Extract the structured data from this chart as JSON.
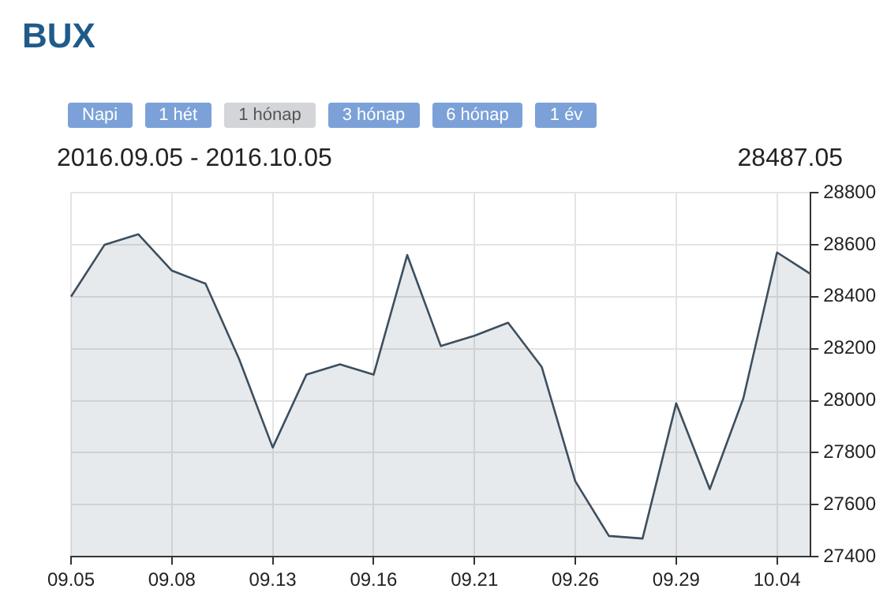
{
  "chart_data": {
    "type": "area",
    "title": "BUX",
    "subtitle": "2016.09.05 - 2016.10.05",
    "annotations": [
      "Napi",
      "1 hét",
      "1 hónap",
      "3 hónap",
      "6 hónap",
      "1 év",
      "28487.05"
    ],
    "categories": [
      "09.05",
      null,
      null,
      "09.08",
      null,
      null,
      "09.13",
      null,
      null,
      "09.16",
      null,
      null,
      "09.21",
      null,
      null,
      "09.26",
      null,
      null,
      "09.29",
      null,
      null,
      "10.04",
      null
    ],
    "series": [
      {
        "color": "#3d4f5f",
        "values": [
          28400,
          28600,
          28640,
          28500,
          28450,
          28160,
          27820,
          28100,
          28140,
          28100,
          28560,
          28210,
          28250,
          28300,
          28130,
          27690,
          27480,
          27470,
          27990,
          27660,
          28010,
          28570,
          28487.05
        ]
      }
    ],
    "ylim": [
      27400,
      28800
    ],
    "yticks": [
      27400,
      27600,
      27800,
      28000,
      28200,
      28400,
      28600,
      28800
    ],
    "grid": true,
    "legend": false,
    "marker": "none",
    "line_style": "solid"
  }
}
